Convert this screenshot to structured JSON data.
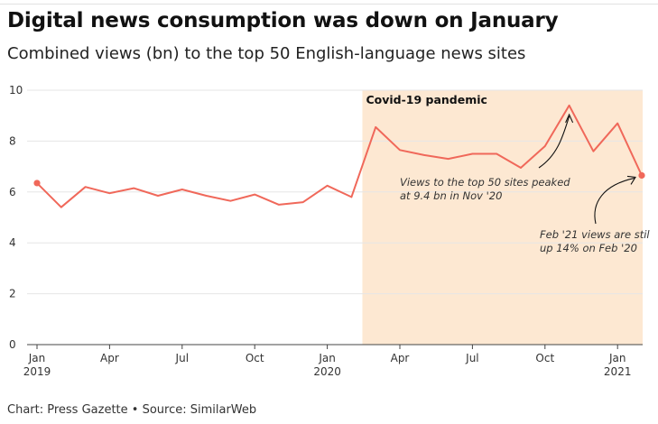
{
  "title": "Digital news consumption was down on January",
  "subtitle": "Combined views (bn) to the top 50 English-language news sites",
  "footer": "Chart: Press Gazette • Source: SimilarWeb",
  "colors": {
    "line": "#f0685a",
    "shade": "#fde8d2",
    "grid": "#e6e6e6"
  },
  "chart_data": {
    "type": "line",
    "title": "Digital news consumption was down on January",
    "subtitle": "Combined views (bn) to the top 50 English-language news sites",
    "ylim": [
      0,
      10
    ],
    "yticks": [
      0,
      2,
      4,
      6,
      8,
      10
    ],
    "grid": true,
    "x": [
      "2019-01",
      "2019-02",
      "2019-03",
      "2019-04",
      "2019-05",
      "2019-06",
      "2019-07",
      "2019-08",
      "2019-09",
      "2019-10",
      "2019-11",
      "2019-12",
      "2020-01",
      "2020-02",
      "2020-03",
      "2020-04",
      "2020-05",
      "2020-06",
      "2020-07",
      "2020-08",
      "2020-09",
      "2020-10",
      "2020-11",
      "2020-12",
      "2021-01",
      "2021-02"
    ],
    "series": [
      {
        "values": [
          6.35,
          5.4,
          6.2,
          5.95,
          6.15,
          5.85,
          6.1,
          5.85,
          5.65,
          5.9,
          5.5,
          5.6,
          6.25,
          5.8,
          8.55,
          7.65,
          7.45,
          7.3,
          7.5,
          7.5,
          6.95,
          7.8,
          9.4,
          7.6,
          8.7,
          6.65
        ]
      }
    ],
    "xtick_labels": [
      {
        "x": "2019-01",
        "month": "Jan",
        "year": "2019"
      },
      {
        "x": "2019-04",
        "month": "Apr",
        "year": ""
      },
      {
        "x": "2019-07",
        "month": "Jul",
        "year": ""
      },
      {
        "x": "2019-10",
        "month": "Oct",
        "year": ""
      },
      {
        "x": "2020-01",
        "month": "Jan",
        "year": "2020"
      },
      {
        "x": "2020-04",
        "month": "Apr",
        "year": ""
      },
      {
        "x": "2020-07",
        "month": "Jul",
        "year": ""
      },
      {
        "x": "2020-10",
        "month": "Oct",
        "year": ""
      },
      {
        "x": "2021-01",
        "month": "Jan",
        "year": "2021"
      }
    ],
    "shaded_region": {
      "from": "2020-03",
      "to": "2021-02",
      "label": "Covid-19 pandemic"
    },
    "annotations": [
      {
        "lines": [
          "Views to the top 50 sites peaked",
          "at 9.4 bn in Nov '20"
        ],
        "target": "2020-11"
      },
      {
        "lines": [
          "Feb '21 views are stil",
          "up 14% on Feb '20"
        ],
        "target": "2021-02"
      }
    ],
    "end_markers": [
      "2019-01",
      "2021-02"
    ]
  }
}
